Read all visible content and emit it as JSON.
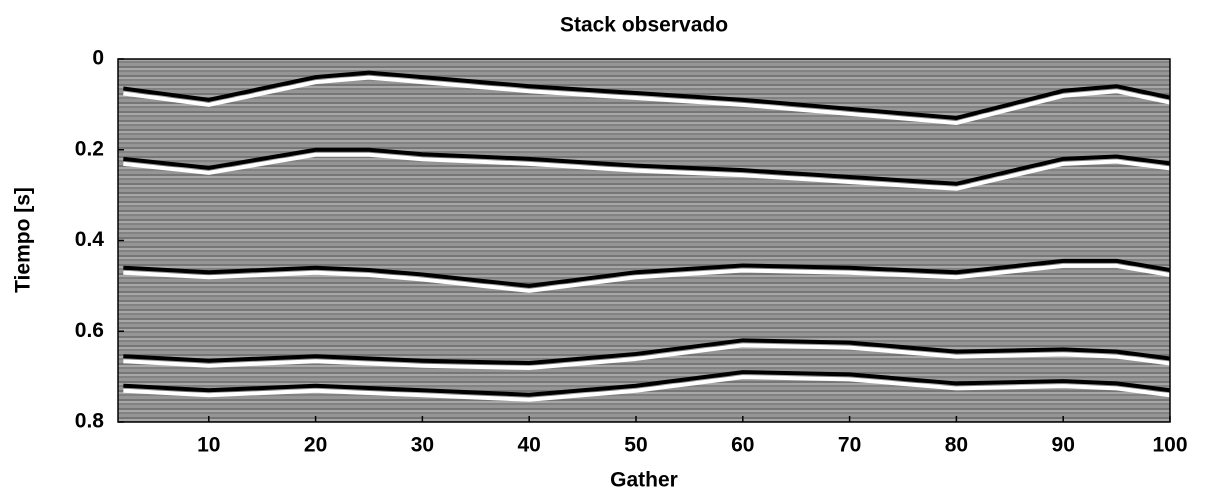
{
  "chart_data": {
    "type": "seismic",
    "title": "Stack observado",
    "xlabel": "Gather",
    "ylabel": "Tiempo [s]",
    "xlim": [
      1.5,
      100
    ],
    "ylim": [
      0,
      0.8
    ],
    "y_inverted": true,
    "xticks": [
      10,
      20,
      30,
      40,
      50,
      60,
      70,
      80,
      90,
      100
    ],
    "yticks": [
      0,
      0.2,
      0.4,
      0.6,
      0.8
    ],
    "background": "#8a8a8a",
    "x": [
      2,
      10,
      20,
      25,
      30,
      40,
      50,
      60,
      70,
      80,
      90,
      95,
      100
    ],
    "series": [
      {
        "color": "#000000",
        "values": [
          0.065,
          0.09,
          0.04,
          0.03,
          0.04,
          0.06,
          0.075,
          0.09,
          0.11,
          0.13,
          0.07,
          0.06,
          0.085
        ]
      },
      {
        "color": "#000000",
        "values": [
          0.22,
          0.24,
          0.2,
          0.2,
          0.21,
          0.22,
          0.235,
          0.245,
          0.26,
          0.275,
          0.22,
          0.215,
          0.23
        ]
      },
      {
        "color": "#000000",
        "values": [
          0.46,
          0.47,
          0.46,
          0.465,
          0.475,
          0.5,
          0.47,
          0.455,
          0.46,
          0.47,
          0.445,
          0.445,
          0.465
        ]
      },
      {
        "color": "#000000",
        "values": [
          0.655,
          0.665,
          0.655,
          0.66,
          0.665,
          0.67,
          0.65,
          0.62,
          0.625,
          0.645,
          0.64,
          0.645,
          0.66
        ]
      },
      {
        "color": "#000000",
        "values": [
          0.72,
          0.73,
          0.72,
          0.725,
          0.73,
          0.74,
          0.72,
          0.69,
          0.695,
          0.715,
          0.71,
          0.715,
          0.73
        ]
      }
    ]
  }
}
